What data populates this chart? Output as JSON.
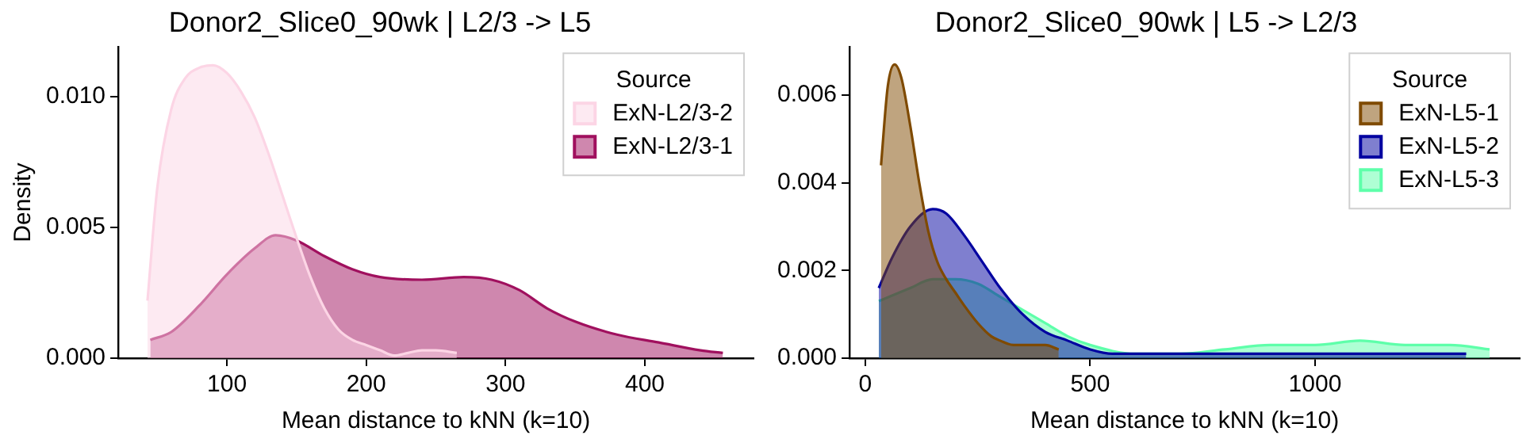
{
  "chart_data": [
    {
      "type": "area",
      "title": "Donor2_Slice0_90wk | L2/3 -> L5",
      "xlabel": "Mean distance to kNN (k=10)",
      "ylabel": "Density",
      "legend_title": "Source",
      "legend": "top right",
      "grid": false,
      "xlim": [
        22,
        478
      ],
      "xticks": [
        100,
        200,
        300,
        400
      ],
      "ylim": [
        0,
        0.0119
      ],
      "yticks": [
        {
          "value": 0,
          "label": "0.000"
        },
        {
          "value": 0.005,
          "label": "0.005"
        },
        {
          "value": 0.01,
          "label": "0.010"
        }
      ],
      "series": [
        {
          "name": "ExN-L2/3-2",
          "color": "#fcd5e5",
          "x": [
            43,
            50,
            60,
            70,
            80,
            90,
            100,
            110,
            120,
            130,
            140,
            150,
            160,
            170,
            180,
            190,
            200,
            210,
            220,
            230,
            240,
            250,
            265
          ],
          "values": [
            0.0022,
            0.0065,
            0.0095,
            0.0107,
            0.0111,
            0.0112,
            0.0109,
            0.0102,
            0.0092,
            0.0078,
            0.0062,
            0.0046,
            0.0031,
            0.0019,
            0.0011,
            0.0007,
            0.0005,
            0.0003,
            0.0001,
            0.0002,
            0.0003,
            0.0003,
            0.0002
          ]
        },
        {
          "name": "ExN-L2/3-1",
          "color": "#a0105e",
          "x": [
            45,
            60,
            80,
            100,
            120,
            135,
            150,
            170,
            190,
            210,
            240,
            270,
            290,
            310,
            330,
            350,
            380,
            410,
            440,
            456
          ],
          "values": [
            0.0007,
            0.001,
            0.002,
            0.0032,
            0.0042,
            0.0047,
            0.0045,
            0.0039,
            0.0034,
            0.0031,
            0.003,
            0.0031,
            0.003,
            0.0026,
            0.0019,
            0.0014,
            0.0009,
            0.0006,
            0.0003,
            0.0002
          ]
        }
      ]
    },
    {
      "type": "area",
      "title": "Donor2_Slice0_90wk | L5 -> L2/3",
      "xlabel": "Mean distance to kNN (k=10)",
      "legend_title": "Source",
      "legend": "top right",
      "grid": false,
      "xlim": [
        -35,
        1455
      ],
      "xticks": [
        0,
        500,
        1000
      ],
      "ylim": [
        0,
        0.0071
      ],
      "yticks": [
        {
          "value": 0,
          "label": "0.000"
        },
        {
          "value": 0.002,
          "label": "0.002"
        },
        {
          "value": 0.004,
          "label": "0.004"
        },
        {
          "value": 0.006,
          "label": "0.006"
        }
      ],
      "series": [
        {
          "name": "ExN-L5-1",
          "color": "#7f4a00",
          "x": [
            35,
            50,
            65,
            80,
            100,
            120,
            140,
            160,
            180,
            200,
            220,
            250,
            280,
            300,
            330,
            360,
            400,
            430
          ],
          "values": [
            0.0044,
            0.0062,
            0.0067,
            0.0064,
            0.0053,
            0.004,
            0.0029,
            0.0022,
            0.0018,
            0.0015,
            0.0012,
            0.0008,
            0.0005,
            0.0004,
            0.0003,
            0.0003,
            0.0003,
            0.0002
          ]
        },
        {
          "name": "ExN-L5-2",
          "color": "#0000a0",
          "x": [
            30,
            60,
            100,
            150,
            180,
            220,
            260,
            300,
            350,
            400,
            450,
            500,
            550,
            600,
            700,
            800,
            900,
            1000,
            1100,
            1200,
            1336
          ],
          "values": [
            0.0016,
            0.0023,
            0.003,
            0.0034,
            0.0033,
            0.0028,
            0.0022,
            0.0016,
            0.001,
            0.0006,
            0.0004,
            0.0002,
            0.0001,
            0.0001,
            0.0001,
            0.0001,
            0.0001,
            0.0001,
            0.0001,
            0.0001,
            0.0001
          ]
        },
        {
          "name": "ExN-L5-3",
          "color": "#5effaa",
          "x": [
            30,
            100,
            150,
            200,
            250,
            300,
            350,
            400,
            450,
            500,
            600,
            700,
            800,
            900,
            1000,
            1100,
            1200,
            1300,
            1388
          ],
          "values": [
            0.0013,
            0.0016,
            0.0018,
            0.0018,
            0.0017,
            0.0014,
            0.0011,
            0.0008,
            0.0005,
            0.0003,
            0.0001,
            0.0001,
            0.0002,
            0.0003,
            0.0003,
            0.0004,
            0.0003,
            0.0003,
            0.0002
          ]
        }
      ]
    }
  ]
}
